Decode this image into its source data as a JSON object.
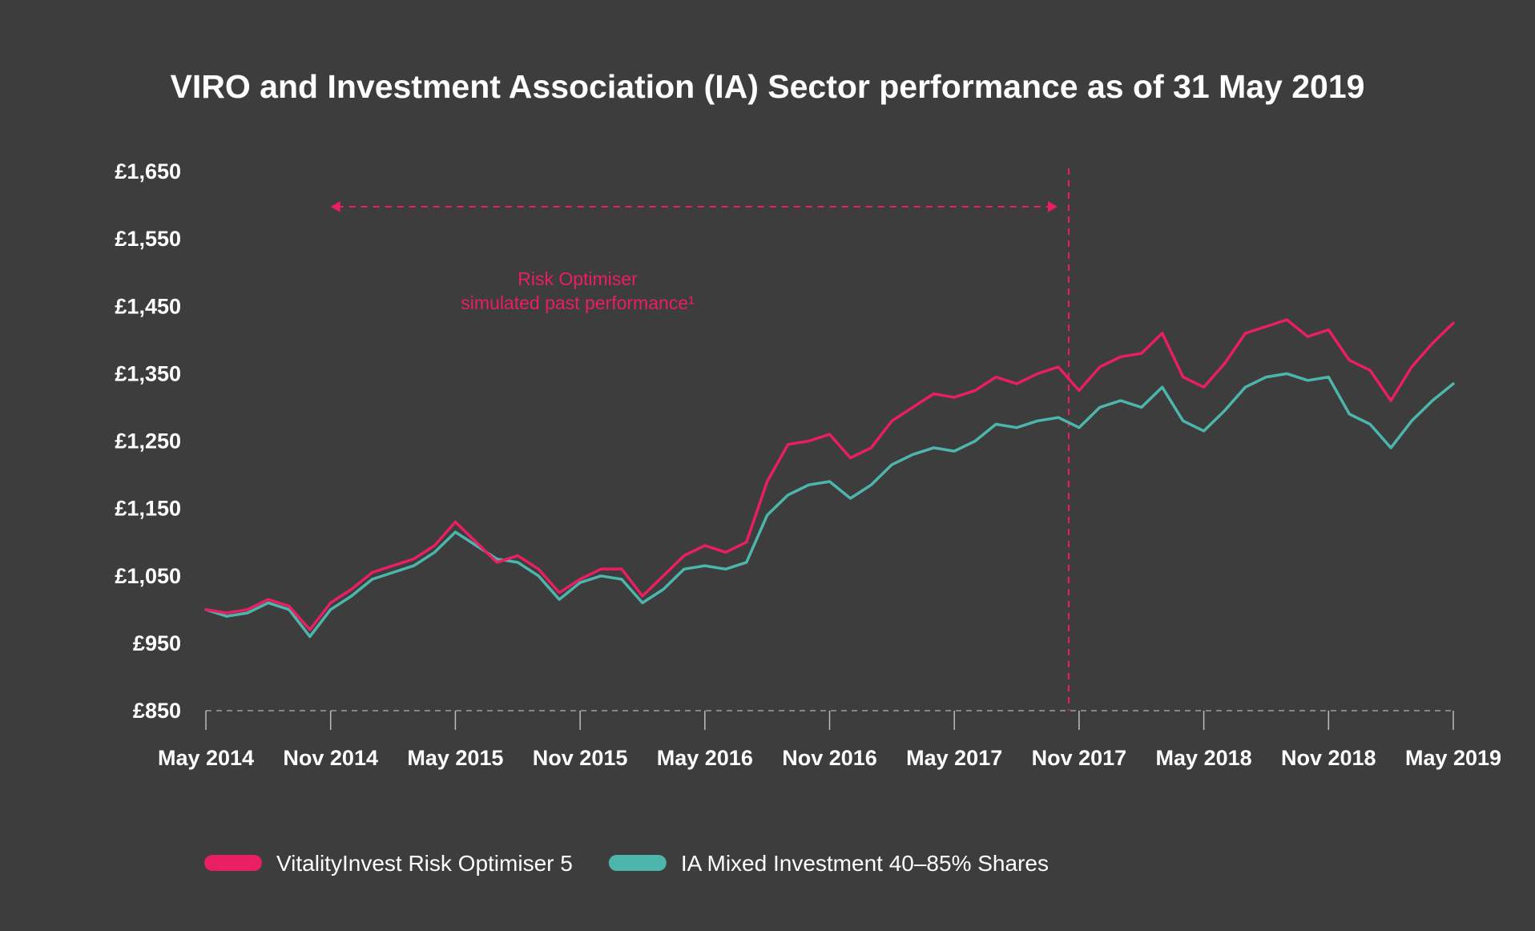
{
  "chart_data": {
    "type": "line",
    "title": "VIRO and Investment Association (IA) Sector performance as of 31 May 2019",
    "xlabel": "",
    "ylabel": "",
    "x_ticks": [
      "May 2014",
      "Nov 2014",
      "May 2015",
      "Nov 2015",
      "May 2016",
      "Nov 2016",
      "May 2017",
      "Nov 2017",
      "May 2018",
      "Nov 2018",
      "May 2019"
    ],
    "y_ticks": [
      "£1,650",
      "£1,550",
      "£1,450",
      "£1,350",
      "£1,250",
      "£1,150",
      "£1,050",
      "£950",
      "£850"
    ],
    "y_tick_values": [
      1650,
      1550,
      1450,
      1350,
      1250,
      1150,
      1050,
      950,
      850
    ],
    "ylim": [
      850,
      1650
    ],
    "xlim": [
      0,
      60
    ],
    "grid": false,
    "annotation": {
      "lines": [
        "Risk Optimiser",
        "simulated past performance¹"
      ],
      "range_start_month": 6,
      "range_end_month": 41.5,
      "divider_month": 41.5
    },
    "legend_position": "bottom-left",
    "series": [
      {
        "name": "VitalityInvest Risk Optimiser 5",
        "color": "#e91e63",
        "x": [
          0,
          1,
          2,
          3,
          4,
          5,
          6,
          7,
          8,
          9,
          10,
          11,
          12,
          13,
          14,
          15,
          16,
          17,
          18,
          19,
          20,
          21,
          22,
          23,
          24,
          25,
          26,
          27,
          28,
          29,
          30,
          31,
          32,
          33,
          34,
          35,
          36,
          37,
          38,
          39,
          40,
          41,
          42,
          43,
          44,
          45,
          46,
          47,
          48,
          49,
          50,
          51,
          52,
          53,
          54,
          55,
          56,
          57,
          58,
          59,
          60
        ],
        "values": [
          1000,
          995,
          1000,
          1015,
          1005,
          970,
          1010,
          1030,
          1055,
          1065,
          1075,
          1095,
          1130,
          1100,
          1070,
          1080,
          1060,
          1025,
          1045,
          1060,
          1060,
          1020,
          1050,
          1080,
          1095,
          1085,
          1100,
          1190,
          1245,
          1250,
          1260,
          1225,
          1240,
          1280,
          1300,
          1320,
          1315,
          1325,
          1345,
          1335,
          1350,
          1360,
          1325,
          1360,
          1375,
          1380,
          1410,
          1345,
          1330,
          1365,
          1410,
          1420,
          1430,
          1405,
          1415,
          1370,
          1355,
          1310,
          1360,
          1395,
          1425
        ]
      },
      {
        "name": "IA Mixed Investment 40–85% Shares",
        "color": "#4db6ac",
        "x": [
          0,
          1,
          2,
          3,
          4,
          5,
          6,
          7,
          8,
          9,
          10,
          11,
          12,
          13,
          14,
          15,
          16,
          17,
          18,
          19,
          20,
          21,
          22,
          23,
          24,
          25,
          26,
          27,
          28,
          29,
          30,
          31,
          32,
          33,
          34,
          35,
          36,
          37,
          38,
          39,
          40,
          41,
          42,
          43,
          44,
          45,
          46,
          47,
          48,
          49,
          50,
          51,
          52,
          53,
          54,
          55,
          56,
          57,
          58,
          59,
          60
        ],
        "values": [
          1000,
          990,
          995,
          1010,
          1000,
          960,
          1000,
          1020,
          1045,
          1055,
          1065,
          1085,
          1115,
          1095,
          1075,
          1070,
          1050,
          1015,
          1040,
          1050,
          1045,
          1010,
          1030,
          1060,
          1065,
          1060,
          1070,
          1140,
          1170,
          1185,
          1190,
          1165,
          1185,
          1215,
          1230,
          1240,
          1235,
          1250,
          1275,
          1270,
          1280,
          1285,
          1270,
          1300,
          1310,
          1300,
          1330,
          1280,
          1265,
          1295,
          1330,
          1345,
          1350,
          1340,
          1345,
          1290,
          1275,
          1240,
          1280,
          1310,
          1335
        ]
      }
    ]
  }
}
